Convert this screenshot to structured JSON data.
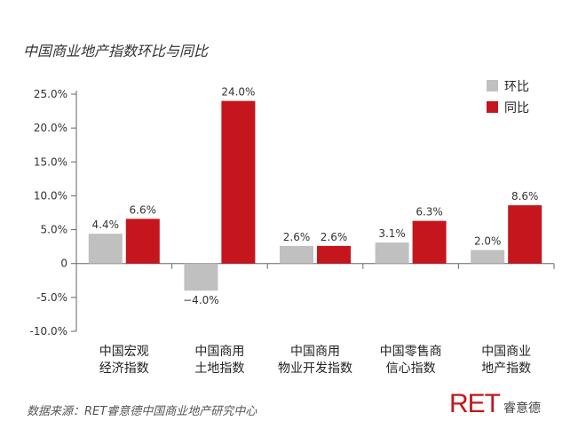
{
  "title": "中国商业地产指数环比与同比",
  "source": "数据来源：RET睿意德中国商业地产研究中心",
  "logo": {
    "mark": "RET",
    "text": "睿意德"
  },
  "colors": {
    "mom": "#c0c0c0",
    "yoy": "#c4161c",
    "axis": "#666666",
    "label": "#333333"
  },
  "chart_data": {
    "type": "bar",
    "categories": [
      [
        "中国宏观",
        "经济指数"
      ],
      [
        "中国商用",
        "土地指数"
      ],
      [
        "中国商用",
        "物业开发指数"
      ],
      [
        "中国零售商",
        "信心指数"
      ],
      [
        "中国商业",
        "地产指数"
      ]
    ],
    "series": [
      {
        "name": "环比",
        "values": [
          4.4,
          -4.0,
          2.6,
          3.1,
          2.0
        ],
        "labels": [
          "4.4%",
          "−4.0%",
          "2.6%",
          "3.1%",
          "2.0%"
        ]
      },
      {
        "name": "同比",
        "values": [
          6.6,
          24.0,
          2.6,
          6.3,
          8.6
        ],
        "labels": [
          "6.6%",
          "24.0%",
          "2.6%",
          "6.3%",
          "8.6%"
        ]
      }
    ],
    "yticks": [
      25,
      20,
      15,
      10,
      5,
      0,
      -5,
      -10
    ],
    "ytick_labels": [
      "25.0%",
      "20.0%",
      "15.0%",
      "10.0%",
      "5.0%",
      "0",
      "-5.0%",
      "-10.0%"
    ],
    "ylim": [
      -10,
      25
    ],
    "legend_position": "top-right",
    "grid": false
  }
}
